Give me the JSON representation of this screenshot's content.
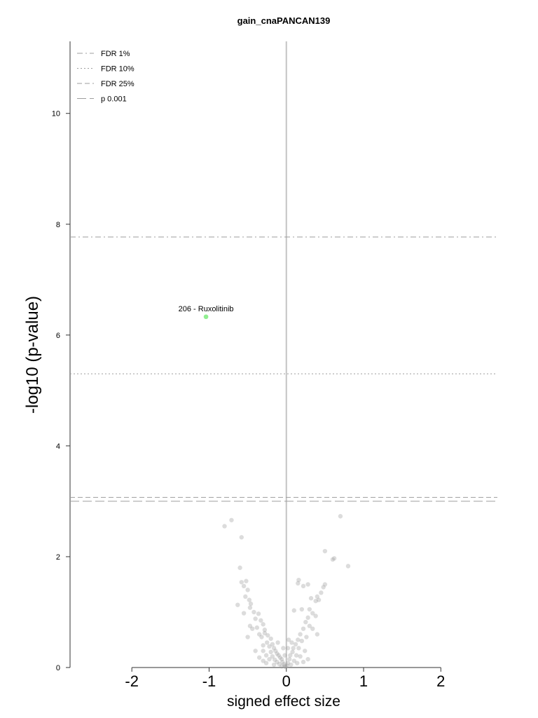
{
  "chart_data": {
    "type": "scatter",
    "title": "gain_cnaPANCAN139",
    "xlabel": "signed effect size",
    "ylabel": "-log10 (p-value)",
    "xlim": [
      -2.8,
      2.75
    ],
    "ylim": [
      0,
      11.3
    ],
    "x_ticks": [
      "-2",
      "-1",
      "0",
      "1",
      "2"
    ],
    "x_tick_values": [
      -2,
      -1,
      0,
      1,
      2
    ],
    "y_ticks": [
      "0",
      "2",
      "4",
      "6",
      "8",
      "10"
    ],
    "y_tick_values": [
      0,
      2,
      4,
      6,
      8,
      10
    ],
    "grid": false,
    "legend_position": "top-left",
    "thresholds": [
      {
        "name": "FDR 1%",
        "value": 7.77,
        "style": "dashdot"
      },
      {
        "name": "FDR 10%",
        "value": 5.3,
        "style": "dotted"
      },
      {
        "name": "FDR 25%",
        "value": 3.07,
        "style": "dashed"
      },
      {
        "name": "p 0.001",
        "value": 3.0,
        "style": "longdash"
      }
    ],
    "colors": {
      "point": "#9a9a9a",
      "highlight": "#90ee90",
      "threshold": "#9e9e9e",
      "zero_line": "#c4c4c4"
    },
    "highlight": {
      "label": "206 - Ruxolitinib",
      "x": -1.04,
      "y": 6.33
    },
    "points": [
      [
        -0.8,
        2.55
      ],
      [
        -0.71,
        2.66
      ],
      [
        -0.58,
        2.35
      ],
      [
        -0.6,
        1.8
      ],
      [
        -0.58,
        1.54
      ],
      [
        -0.52,
        1.56
      ],
      [
        -0.55,
        1.47
      ],
      [
        -0.5,
        1.4
      ],
      [
        -0.63,
        1.13
      ],
      [
        -0.53,
        1.28
      ],
      [
        -0.48,
        1.22
      ],
      [
        -0.46,
        1.15
      ],
      [
        -0.47,
        1.08
      ],
      [
        -0.55,
        0.98
      ],
      [
        -0.42,
        1.0
      ],
      [
        -0.4,
        0.88
      ],
      [
        -0.36,
        0.97
      ],
      [
        -0.33,
        0.85
      ],
      [
        -0.47,
        0.75
      ],
      [
        -0.44,
        0.7
      ],
      [
        -0.38,
        0.72
      ],
      [
        -0.3,
        0.78
      ],
      [
        -0.28,
        0.68
      ],
      [
        -0.35,
        0.6
      ],
      [
        -0.32,
        0.55
      ],
      [
        -0.28,
        0.62
      ],
      [
        -0.24,
        0.58
      ],
      [
        -0.5,
        0.55
      ],
      [
        -0.2,
        0.52
      ],
      [
        -0.25,
        0.45
      ],
      [
        -0.3,
        0.4
      ],
      [
        -0.22,
        0.38
      ],
      [
        -0.18,
        0.42
      ],
      [
        -0.16,
        0.35
      ],
      [
        -0.3,
        0.3
      ],
      [
        -0.2,
        0.28
      ],
      [
        -0.14,
        0.3
      ],
      [
        -0.12,
        0.25
      ],
      [
        -0.26,
        0.22
      ],
      [
        -0.18,
        0.2
      ],
      [
        -0.1,
        0.22
      ],
      [
        -0.08,
        0.18
      ],
      [
        -0.22,
        0.15
      ],
      [
        -0.15,
        0.14
      ],
      [
        -0.06,
        0.15
      ],
      [
        -0.05,
        0.1
      ],
      [
        -0.12,
        0.1
      ],
      [
        -0.3,
        0.12
      ],
      [
        -0.03,
        0.06
      ],
      [
        -0.09,
        0.06
      ],
      [
        -0.02,
        0.03
      ],
      [
        -0.16,
        0.05
      ],
      [
        -0.06,
        0.02
      ],
      [
        -0.01,
        0.01
      ],
      [
        -0.35,
        0.18
      ],
      [
        -0.11,
        0.45
      ],
      [
        -0.04,
        0.35
      ],
      [
        -0.02,
        0.22
      ],
      [
        -0.26,
        0.08
      ],
      [
        -0.4,
        0.3
      ],
      [
        0.7,
        2.73
      ],
      [
        0.8,
        1.83
      ],
      [
        0.5,
        2.1
      ],
      [
        0.6,
        1.95
      ],
      [
        0.62,
        1.97
      ],
      [
        0.16,
        1.58
      ],
      [
        0.15,
        1.52
      ],
      [
        0.22,
        1.47
      ],
      [
        0.28,
        1.5
      ],
      [
        0.48,
        1.45
      ],
      [
        0.5,
        1.5
      ],
      [
        0.45,
        1.35
      ],
      [
        0.4,
        1.28
      ],
      [
        0.42,
        1.22
      ],
      [
        0.38,
        1.2
      ],
      [
        0.32,
        1.25
      ],
      [
        0.1,
        1.03
      ],
      [
        0.2,
        1.05
      ],
      [
        0.3,
        1.05
      ],
      [
        0.34,
        0.98
      ],
      [
        0.38,
        0.93
      ],
      [
        0.28,
        0.9
      ],
      [
        0.25,
        0.82
      ],
      [
        0.3,
        0.75
      ],
      [
        0.34,
        0.7
      ],
      [
        0.22,
        0.7
      ],
      [
        0.18,
        0.6
      ],
      [
        0.26,
        0.55
      ],
      [
        0.2,
        0.48
      ],
      [
        0.15,
        0.5
      ],
      [
        0.12,
        0.42
      ],
      [
        0.16,
        0.35
      ],
      [
        0.09,
        0.35
      ],
      [
        0.08,
        0.28
      ],
      [
        0.13,
        0.22
      ],
      [
        0.05,
        0.22
      ],
      [
        0.04,
        0.15
      ],
      [
        0.1,
        0.12
      ],
      [
        0.02,
        0.08
      ],
      [
        0.06,
        0.05
      ],
      [
        0.01,
        0.03
      ],
      [
        0.18,
        0.2
      ],
      [
        0.03,
        0.5
      ],
      [
        0.07,
        0.45
      ],
      [
        0.02,
        0.35
      ],
      [
        0.24,
        0.3
      ],
      [
        0.4,
        0.6
      ],
      [
        0.14,
        0.08
      ],
      [
        0.28,
        0.15
      ],
      [
        0.22,
        0.1
      ]
    ]
  }
}
